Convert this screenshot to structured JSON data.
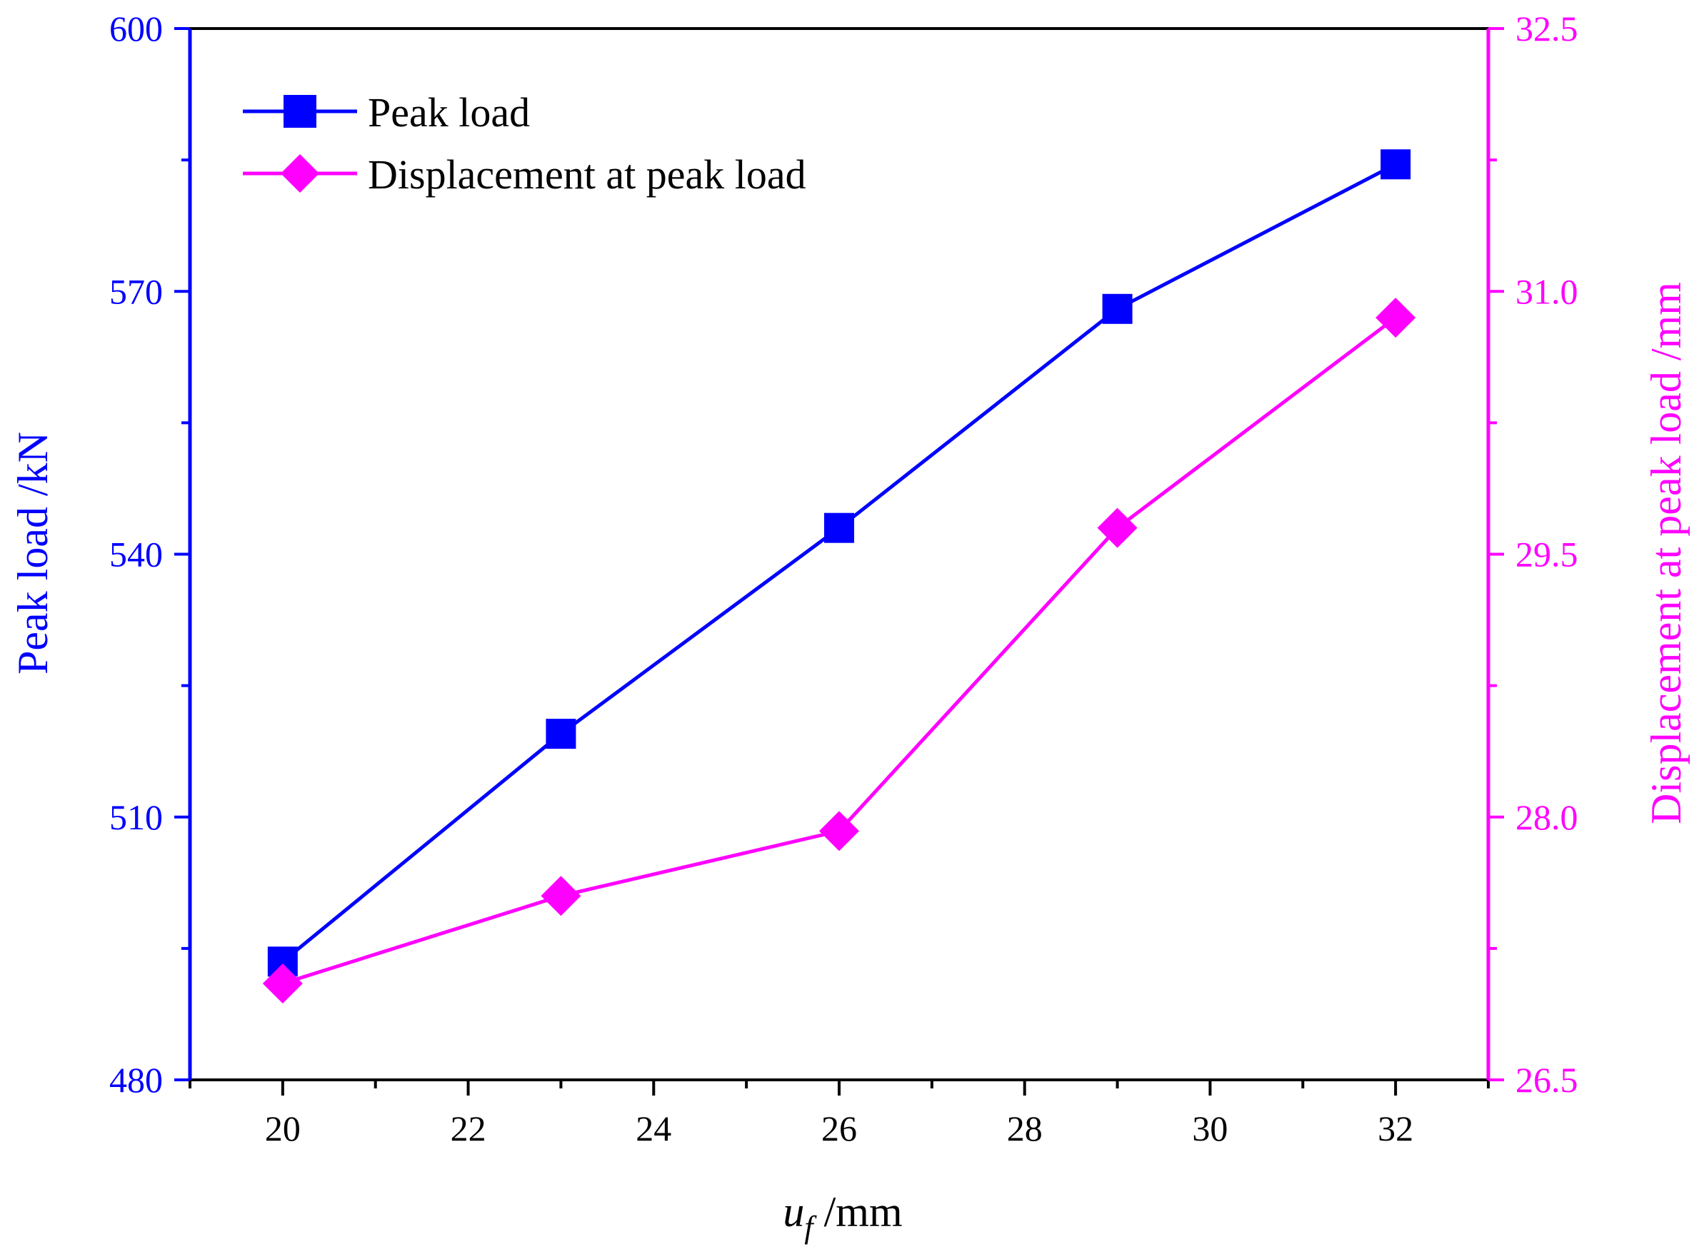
{
  "chart_data": {
    "type": "line",
    "x": [
      20,
      23,
      26,
      29,
      32
    ],
    "xlim": [
      19,
      33
    ],
    "xticks": [
      20,
      22,
      24,
      26,
      28,
      30,
      32
    ],
    "xtick_labels": [
      "20",
      "22",
      "24",
      "26",
      "28",
      "30",
      "32"
    ],
    "xlabel": {
      "symbol": "u",
      "subscript": "f",
      "unit": " /mm"
    },
    "left_axis": {
      "label": "Peak load /kN",
      "ylim": [
        480,
        600
      ],
      "ticks": [
        480,
        510,
        540,
        570,
        600
      ],
      "tick_labels": [
        "480",
        "510",
        "540",
        "570",
        "600"
      ],
      "color": "#0000ff"
    },
    "right_axis": {
      "label": "Displacement at peak load /mm",
      "ylim": [
        26.5,
        32.5
      ],
      "ticks": [
        26.5,
        28.0,
        29.5,
        31.0,
        32.5
      ],
      "tick_labels": [
        "26.5",
        "28.0",
        "29.5",
        "31.0",
        "32.5"
      ],
      "color": "#ff00ff"
    },
    "series": [
      {
        "name": "Peak load",
        "axis": "left",
        "marker": "square",
        "color": "#0000ff",
        "values": [
          493.5,
          519.5,
          543.0,
          568.0,
          584.5
        ]
      },
      {
        "name": "Displacement at peak load",
        "axis": "right",
        "marker": "diamond",
        "color": "#ff00ff",
        "values": [
          27.05,
          27.55,
          27.92,
          29.65,
          30.85
        ]
      }
    ],
    "legend": {
      "position": "top-left",
      "entries": [
        "Peak load",
        "Displacement at peak load"
      ]
    }
  }
}
